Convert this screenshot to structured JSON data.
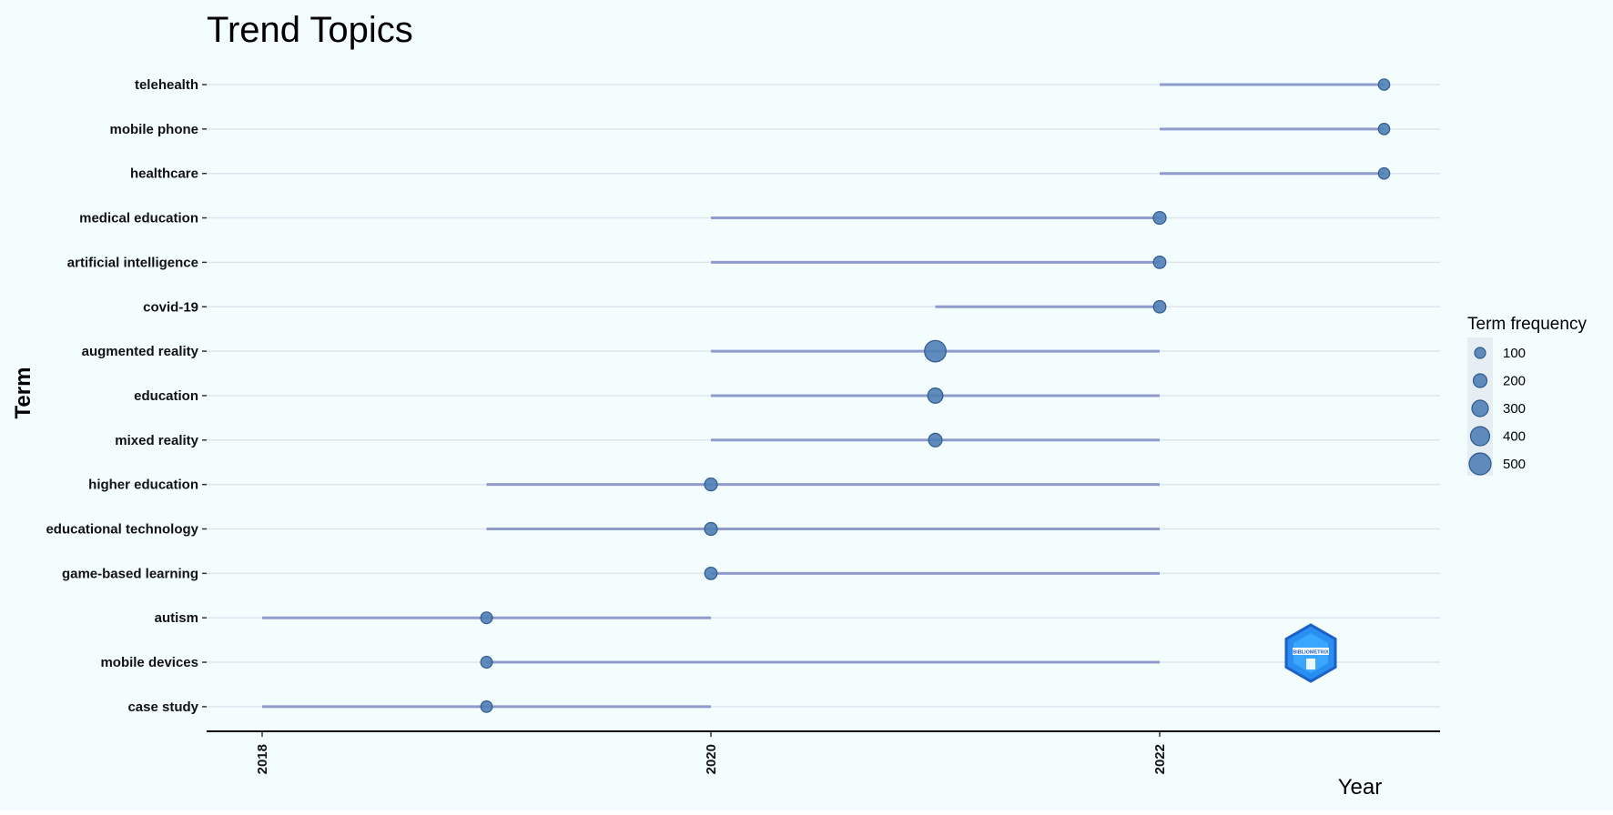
{
  "chart_data": {
    "type": "scatter",
    "title": "Trend Topics",
    "xlabel": "Year",
    "ylabel": "Term",
    "x_ticks": [
      2018,
      2020,
      2022
    ],
    "xlim": [
      2017.75,
      2023.25
    ],
    "grid": true,
    "legend_position": "right",
    "legend": {
      "title": "Term frequency",
      "sizes": [
        100,
        200,
        300,
        400,
        500
      ]
    },
    "terms": [
      {
        "term": "telehealth",
        "start": 2022,
        "median": 2023,
        "end": 2023,
        "frequency": 40
      },
      {
        "term": "mobile phone",
        "start": 2022,
        "median": 2023,
        "end": 2023,
        "frequency": 40
      },
      {
        "term": "healthcare",
        "start": 2022,
        "median": 2023,
        "end": 2023,
        "frequency": 40
      },
      {
        "term": "medical education",
        "start": 2020,
        "median": 2022,
        "end": 2022,
        "frequency": 80
      },
      {
        "term": "artificial intelligence",
        "start": 2020,
        "median": 2022,
        "end": 2022,
        "frequency": 70
      },
      {
        "term": "covid-19",
        "start": 2021,
        "median": 2022,
        "end": 2022,
        "frequency": 70
      },
      {
        "term": "augmented reality",
        "start": 2020,
        "median": 2021,
        "end": 2022,
        "frequency": 520
      },
      {
        "term": "education",
        "start": 2020,
        "median": 2021,
        "end": 2022,
        "frequency": 160
      },
      {
        "term": "mixed reality",
        "start": 2020,
        "median": 2021,
        "end": 2022,
        "frequency": 100
      },
      {
        "term": "higher education",
        "start": 2019,
        "median": 2020,
        "end": 2022,
        "frequency": 80
      },
      {
        "term": "educational technology",
        "start": 2019,
        "median": 2020,
        "end": 2022,
        "frequency": 80
      },
      {
        "term": "game-based learning",
        "start": 2020,
        "median": 2020,
        "end": 2022,
        "frequency": 70
      },
      {
        "term": "autism",
        "start": 2018,
        "median": 2019,
        "end": 2020,
        "frequency": 50
      },
      {
        "term": "mobile devices",
        "start": 2019,
        "median": 2019,
        "end": 2022,
        "frequency": 50
      },
      {
        "term": "case study",
        "start": 2018,
        "median": 2019,
        "end": 2020,
        "frequency": 45
      }
    ],
    "colors": {
      "background": "#f4fdfd",
      "point": "#4f7fb5",
      "point_edge": "#2e5a8e",
      "segment": "#8f9bcc",
      "gridline": "#dde6ee",
      "legend_box": "#e6eef3"
    }
  },
  "watermark": {
    "text": "BIBLIOMETRIX"
  }
}
